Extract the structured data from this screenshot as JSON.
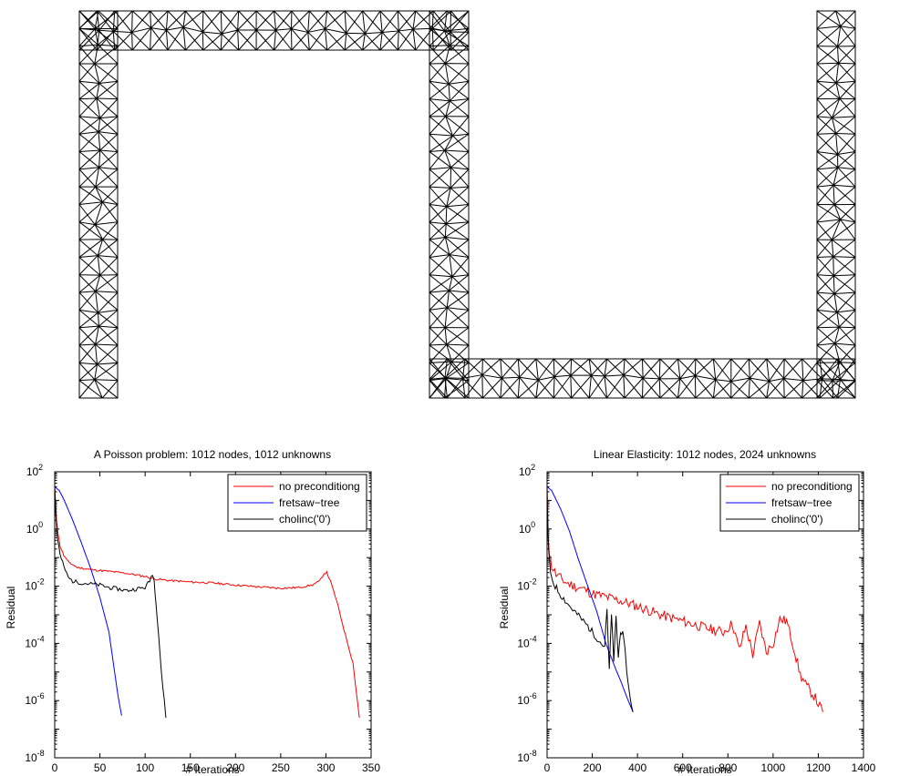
{
  "mesh": {
    "colors": {
      "stroke": "#000000"
    }
  },
  "chart_data": [
    {
      "type": "line",
      "title": "A Poisson problem: 1012 nodes, 1012 unknowns",
      "xlabel": "# Iterations",
      "ylabel": "Residual",
      "y_scale": "log",
      "xlim": [
        0,
        350
      ],
      "ylim_exponent": [
        -8,
        2
      ],
      "x_ticks": [
        "0",
        "50",
        "100",
        "150",
        "200",
        "250",
        "300",
        "350"
      ],
      "x_tick_values": [
        0,
        50,
        100,
        150,
        200,
        250,
        300,
        350
      ],
      "y_tick_exponents": [
        -8,
        -6,
        -4,
        -2,
        0,
        2
      ],
      "y_tick_base": "10",
      "y_tick_sup": [
        "-8",
        "-6",
        "-4",
        "-2",
        "0",
        "2"
      ],
      "legend_placement": "top-right",
      "grid": false,
      "series": [
        {
          "name": "no preconditiong",
          "color": "#ff0000",
          "noise": 0.035,
          "points": [
            [
              0,
              30
            ],
            [
              1,
              8
            ],
            [
              2,
              2
            ],
            [
              4,
              0.6
            ],
            [
              6,
              0.25
            ],
            [
              10,
              0.12
            ],
            [
              15,
              0.07
            ],
            [
              25,
              0.045
            ],
            [
              40,
              0.038
            ],
            [
              60,
              0.033
            ],
            [
              80,
              0.028
            ],
            [
              100,
              0.022
            ],
            [
              110,
              0.018
            ],
            [
              125,
              0.016
            ],
            [
              150,
              0.014
            ],
            [
              175,
              0.013
            ],
            [
              200,
              0.011
            ],
            [
              225,
              0.0095
            ],
            [
              250,
              0.0085
            ],
            [
              270,
              0.009
            ],
            [
              285,
              0.011
            ],
            [
              293,
              0.015
            ],
            [
              298,
              0.028
            ],
            [
              301,
              0.03
            ],
            [
              305,
              0.015
            ],
            [
              312,
              0.003
            ],
            [
              320,
              0.0003
            ],
            [
              330,
              2e-05
            ],
            [
              337,
              2.5e-07
            ]
          ]
        },
        {
          "name": "fretsaw−tree",
          "color": "#0000ff",
          "noise": 0,
          "points": [
            [
              0,
              30
            ],
            [
              5,
              22
            ],
            [
              10,
              11
            ],
            [
              20,
              2
            ],
            [
              30,
              0.3
            ],
            [
              40,
              0.04
            ],
            [
              50,
              0.004
            ],
            [
              60,
              0.00025
            ],
            [
              70,
              1.5e-06
            ],
            [
              74,
              3e-07
            ]
          ]
        },
        {
          "name": "cholinc('0')",
          "color": "#000000",
          "noise": 0.07,
          "points": [
            [
              0,
              30
            ],
            [
              1,
              4
            ],
            [
              3,
              0.5
            ],
            [
              6,
              0.12
            ],
            [
              10,
              0.05
            ],
            [
              15,
              0.02
            ],
            [
              20,
              0.015
            ],
            [
              30,
              0.013
            ],
            [
              40,
              0.012
            ],
            [
              50,
              0.011
            ],
            [
              60,
              0.009
            ],
            [
              70,
              0.008
            ],
            [
              80,
              0.007
            ],
            [
              90,
              0.008
            ],
            [
              100,
              0.009
            ],
            [
              105,
              0.015
            ],
            [
              108,
              0.028
            ],
            [
              110,
              0.015
            ],
            [
              112,
              0.003
            ],
            [
              115,
              0.0002
            ],
            [
              118,
              1e-05
            ],
            [
              123,
              2.5e-07
            ]
          ]
        }
      ]
    },
    {
      "type": "line",
      "title": "Linear Elasticity: 1012 nodes, 2024 unknowns",
      "xlabel": "# Iterations",
      "ylabel": "Residual",
      "y_scale": "log",
      "xlim": [
        0,
        1400
      ],
      "ylim_exponent": [
        -8,
        2
      ],
      "x_ticks": [
        "0",
        "200",
        "400",
        "600",
        "800",
        "1000",
        "1200",
        "1400"
      ],
      "x_tick_values": [
        0,
        200,
        400,
        600,
        800,
        1000,
        1200,
        1400
      ],
      "y_tick_exponents": [
        -8,
        -6,
        -4,
        -2,
        0,
        2
      ],
      "y_tick_base": "10",
      "y_tick_sup": [
        "-8",
        "-6",
        "-4",
        "-2",
        "0",
        "2"
      ],
      "legend_placement": "top-right",
      "grid": false,
      "series": [
        {
          "name": "no preconditiong",
          "color": "#ff0000",
          "noise": 0.18,
          "points": [
            [
              0,
              30
            ],
            [
              2,
              5
            ],
            [
              5,
              0.8
            ],
            [
              10,
              0.15
            ],
            [
              20,
              0.05
            ],
            [
              40,
              0.025
            ],
            [
              80,
              0.014
            ],
            [
              120,
              0.01
            ],
            [
              160,
              0.008
            ],
            [
              200,
              0.0055
            ],
            [
              300,
              0.0035
            ],
            [
              400,
              0.002
            ],
            [
              500,
              0.001
            ],
            [
              600,
              0.0006
            ],
            [
              700,
              0.00035
            ],
            [
              780,
              0.00025
            ],
            [
              820,
              0.0005
            ],
            [
              850,
              6e-05
            ],
            [
              880,
              0.0004
            ],
            [
              910,
              4e-05
            ],
            [
              940,
              0.0005
            ],
            [
              970,
              5e-05
            ],
            [
              1000,
              0.0001
            ],
            [
              1030,
              0.0007
            ],
            [
              1060,
              0.0006
            ],
            [
              1090,
              8e-05
            ],
            [
              1120,
              8e-06
            ],
            [
              1150,
              3e-06
            ],
            [
              1180,
              1.5e-06
            ],
            [
              1220,
              4e-07
            ]
          ]
        },
        {
          "name": "fretsaw−tree",
          "color": "#0000ff",
          "noise": 0,
          "points": [
            [
              0,
              30
            ],
            [
              20,
              22
            ],
            [
              60,
              5
            ],
            [
              100,
              0.8
            ],
            [
              140,
              0.08
            ],
            [
              180,
              0.01
            ],
            [
              220,
              0.0013
            ],
            [
              260,
              0.0001
            ],
            [
              300,
              1.5e-05
            ],
            [
              330,
              4e-06
            ],
            [
              350,
              1.5e-06
            ],
            [
              380,
              4e-07
            ]
          ]
        },
        {
          "name": "cholinc('0')",
          "color": "#000000",
          "noise": 0.12,
          "points": [
            [
              0,
              30
            ],
            [
              3,
              1
            ],
            [
              8,
              0.12
            ],
            [
              15,
              0.03
            ],
            [
              30,
              0.012
            ],
            [
              60,
              0.005
            ],
            [
              100,
              0.002
            ],
            [
              140,
              0.0009
            ],
            [
              180,
              0.0004
            ],
            [
              210,
              0.0002
            ],
            [
              240,
              0.0001
            ],
            [
              255,
              8e-05
            ],
            [
              265,
              0.0015
            ],
            [
              275,
              1e-05
            ],
            [
              285,
              0.0012
            ],
            [
              295,
              2e-05
            ],
            [
              305,
              0.001
            ],
            [
              315,
              3e-05
            ],
            [
              325,
              0.0003
            ],
            [
              335,
              0.0002
            ],
            [
              345,
              5e-05
            ],
            [
              360,
              3e-06
            ],
            [
              380,
              4e-07
            ]
          ]
        }
      ]
    }
  ]
}
